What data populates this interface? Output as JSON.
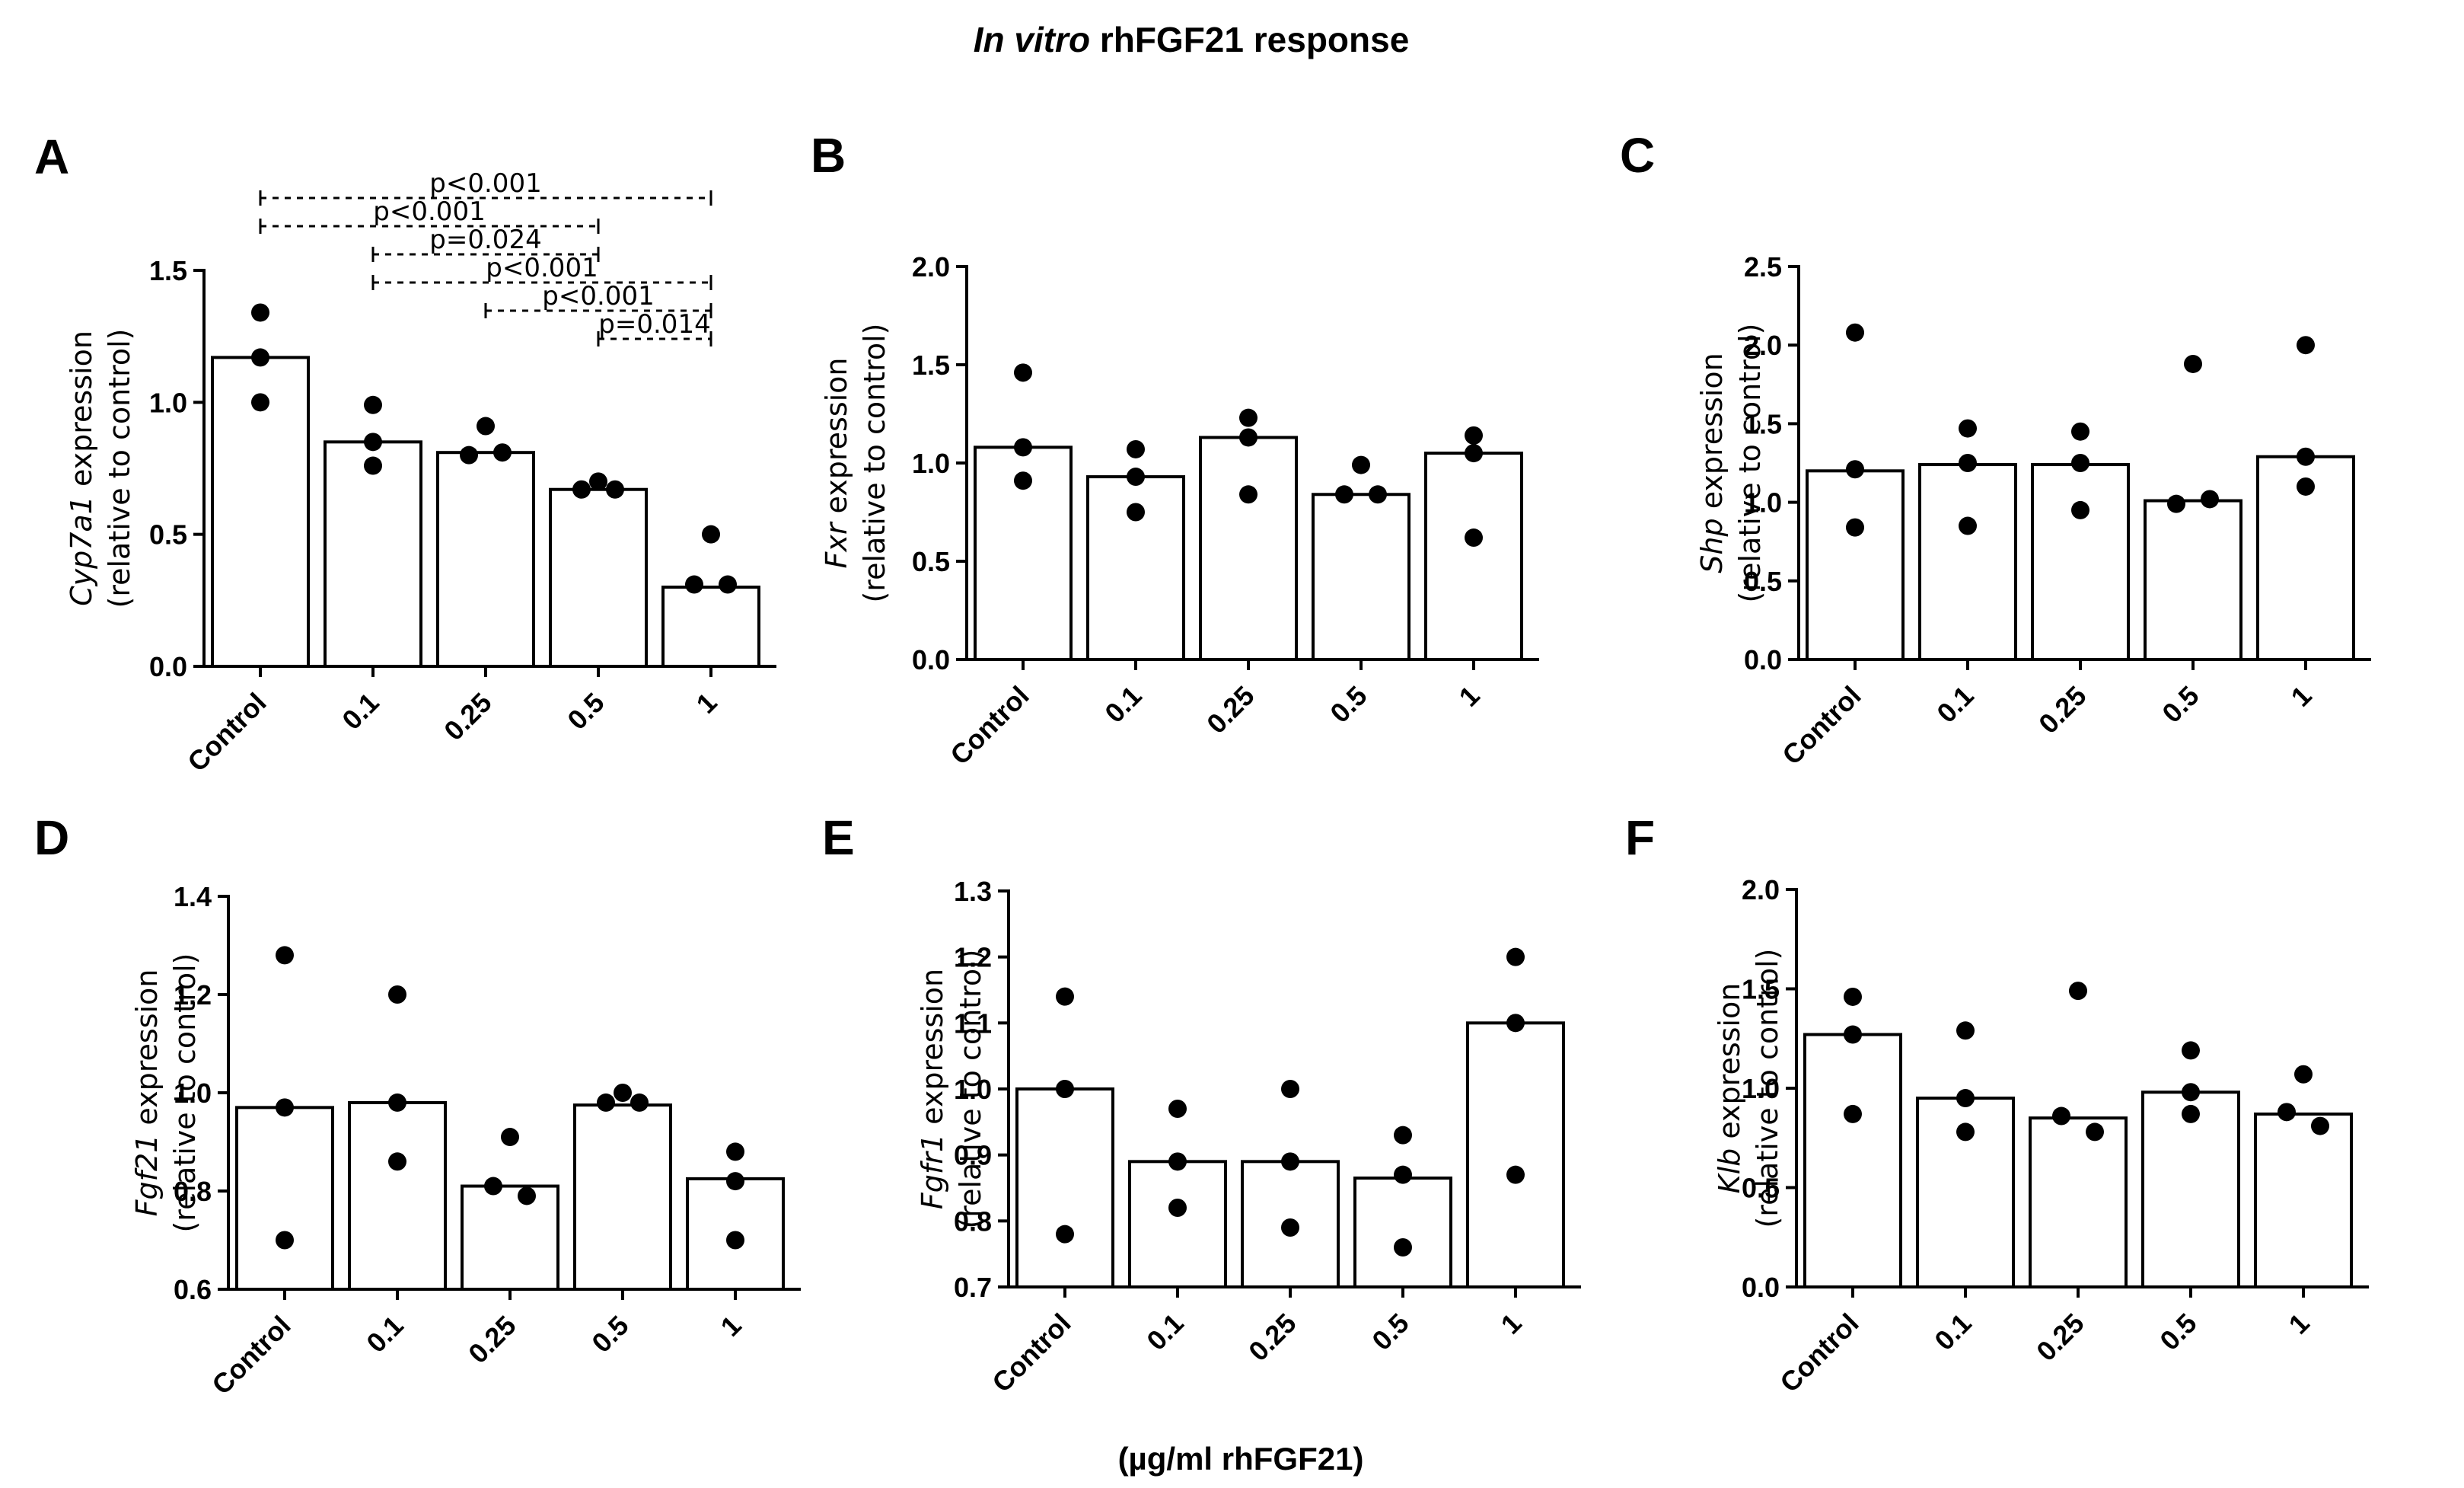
{
  "figure": {
    "title_italic": "In vitro",
    "title_rest": " rhFGF21 response",
    "xlabel": "(µg/ml rhFGF21)"
  },
  "chart_data": [
    {
      "type": "bar",
      "panel": "A",
      "title": "",
      "categories": [
        "Control",
        "0.1",
        "0.25",
        "0.5",
        "1"
      ],
      "values": [
        1.17,
        0.85,
        0.81,
        0.67,
        0.3
      ],
      "points": [
        [
          1.34,
          1.17,
          1.0
        ],
        [
          0.99,
          0.85,
          0.76
        ],
        [
          0.91,
          0.8,
          0.81
        ],
        [
          0.7,
          0.67,
          0.67
        ],
        [
          0.5,
          0.31,
          0.31
        ]
      ],
      "ylabel_gene": "Cyp7a1",
      "ylabel_rest": " expression",
      "ylabel_line2": "(relative to control)",
      "ylim": [
        0,
        1.5
      ],
      "yticks": [
        "0.0",
        "0.5",
        "1.0",
        "1.5"
      ],
      "annotations": [
        {
          "from": 0,
          "to": 4,
          "label": "p<0.001"
        },
        {
          "from": 0,
          "to": 3,
          "label": "p<0.001"
        },
        {
          "from": 1,
          "to": 3,
          "label": "p=0.024"
        },
        {
          "from": 1,
          "to": 4,
          "label": "p<0.001"
        },
        {
          "from": 2,
          "to": 4,
          "label": "p<0.001"
        },
        {
          "from": 3,
          "to": 4,
          "label": "p=0.014"
        }
      ]
    },
    {
      "type": "bar",
      "panel": "B",
      "title": "",
      "categories": [
        "Control",
        "0.1",
        "0.25",
        "0.5",
        "1"
      ],
      "values": [
        1.08,
        0.93,
        1.13,
        0.84,
        1.05
      ],
      "points": [
        [
          1.46,
          1.08,
          0.91
        ],
        [
          1.07,
          0.93,
          0.75
        ],
        [
          1.23,
          1.13,
          0.84
        ],
        [
          0.99,
          0.84,
          0.84
        ],
        [
          1.14,
          1.05,
          0.62
        ]
      ],
      "ylabel_gene": "Fxr",
      "ylabel_rest": " expression",
      "ylabel_line2": "(relative to control)",
      "ylim": [
        0,
        2.0
      ],
      "yticks": [
        "0.0",
        "0.5",
        "1.0",
        "1.5",
        "2.0"
      ]
    },
    {
      "type": "bar",
      "panel": "C",
      "title": "",
      "categories": [
        "Control",
        "0.1",
        "0.25",
        "0.5",
        "1"
      ],
      "values": [
        1.2,
        1.24,
        1.24,
        1.01,
        1.29
      ],
      "points": [
        [
          2.08,
          1.21,
          0.84
        ],
        [
          1.47,
          1.25,
          0.85
        ],
        [
          1.45,
          1.25,
          0.95
        ],
        [
          1.88,
          0.99,
          1.02
        ],
        [
          2.0,
          1.29,
          1.1
        ]
      ],
      "ylabel_gene": "Shp",
      "ylabel_rest": " expression",
      "ylabel_line2": "(relative to control)",
      "ylim": [
        0,
        2.5
      ],
      "yticks": [
        "0.0",
        "0.5",
        "1.0",
        "1.5",
        "2.0",
        "2.5"
      ]
    },
    {
      "type": "bar",
      "panel": "D",
      "title": "",
      "categories": [
        "Control",
        "0.1",
        "0.25",
        "0.5",
        "1"
      ],
      "values": [
        0.97,
        0.98,
        0.81,
        0.975,
        0.825
      ],
      "points": [
        [
          1.28,
          0.97,
          0.7
        ],
        [
          1.2,
          0.98,
          0.86
        ],
        [
          0.91,
          0.81,
          0.79
        ],
        [
          1.0,
          0.98,
          0.98
        ],
        [
          0.88,
          0.82,
          0.7
        ]
      ],
      "ylabel_gene": "Fgf21",
      "ylabel_rest": " expression",
      "ylabel_line2": "(relative to control)",
      "ylim": [
        0.6,
        1.4
      ],
      "yticks": [
        "0.6",
        "0.8",
        "1.0",
        "1.2",
        "1.4"
      ]
    },
    {
      "type": "bar",
      "panel": "E",
      "title": "",
      "categories": [
        "Control",
        "0.1",
        "0.25",
        "0.5",
        "1"
      ],
      "values": [
        1.0,
        0.89,
        0.89,
        0.865,
        1.1
      ],
      "points": [
        [
          1.14,
          1.0,
          0.78
        ],
        [
          0.97,
          0.89,
          0.82
        ],
        [
          1.0,
          0.89,
          0.79
        ],
        [
          0.93,
          0.87,
          0.76
        ],
        [
          1.2,
          1.1,
          0.87
        ]
      ],
      "ylabel_gene": "Fgfr1",
      "ylabel_rest": " expression",
      "ylabel_line2": "(relative to control)",
      "ylim": [
        0.7,
        1.3
      ],
      "yticks": [
        "0.7",
        "0.8",
        "0.9",
        "1.0",
        "1.1",
        "1.2",
        "1.3"
      ]
    },
    {
      "type": "bar",
      "panel": "F",
      "title": "",
      "categories": [
        "Control",
        "0.1",
        "0.25",
        "0.5",
        "1"
      ],
      "values": [
        1.27,
        0.95,
        0.85,
        0.98,
        0.87
      ],
      "points": [
        [
          1.46,
          1.27,
          0.87
        ],
        [
          1.29,
          0.95,
          0.78
        ],
        [
          1.49,
          0.86,
          0.78
        ],
        [
          1.19,
          0.98,
          0.87
        ],
        [
          1.07,
          0.88,
          0.81
        ]
      ],
      "ylabel_gene": "Klb",
      "ylabel_rest": " expression",
      "ylabel_line2": "(relative to control)",
      "ylim": [
        0,
        2.0
      ],
      "yticks": [
        "0.0",
        "0.5",
        "1.0",
        "1.5",
        "2.0"
      ]
    }
  ]
}
